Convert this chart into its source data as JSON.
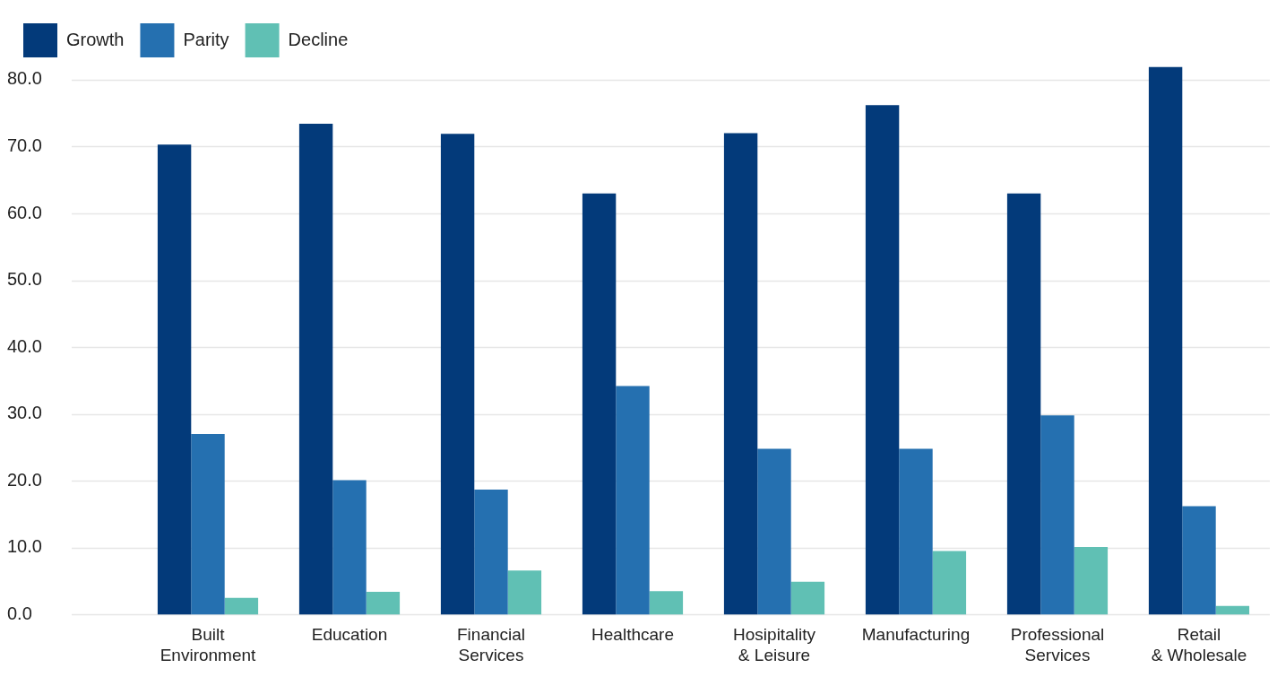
{
  "chart_data": {
    "type": "bar",
    "categories": [
      "Built\nEnvironment",
      "Education",
      "Financial\nServices",
      "Healthcare",
      "Hosipitality\n& Leisure",
      "Manufacturing",
      "Professional\nServices",
      "Retail\n& Wholesale"
    ],
    "series": [
      {
        "name": "Growth",
        "color": "#033a7a",
        "values": [
          70.3,
          73.4,
          71.9,
          63.0,
          72.0,
          76.2,
          63.0,
          81.9
        ]
      },
      {
        "name": "Parity",
        "color": "#2570b0",
        "values": [
          27.0,
          20.1,
          18.7,
          34.2,
          24.8,
          24.8,
          29.8,
          16.2
        ]
      },
      {
        "name": "Decline",
        "color": "#60c0b4",
        "values": [
          2.5,
          3.4,
          6.6,
          3.5,
          4.9,
          9.5,
          10.1,
          1.3
        ]
      }
    ],
    "ylim": [
      0,
      82
    ],
    "yticks": [
      {
        "value": 0,
        "label": "0.0"
      },
      {
        "value": 10,
        "label": "10.0"
      },
      {
        "value": 20,
        "label": "20.0"
      },
      {
        "value": 30,
        "label": "30.0"
      },
      {
        "value": 40,
        "label": "40.0"
      },
      {
        "value": 50,
        "label": "50.0"
      },
      {
        "value": 60,
        "label": "60.0"
      },
      {
        "value": 70,
        "label": "70.0"
      },
      {
        "value": 80,
        "label": "80.0"
      }
    ],
    "grid": true,
    "legend": "top left"
  }
}
